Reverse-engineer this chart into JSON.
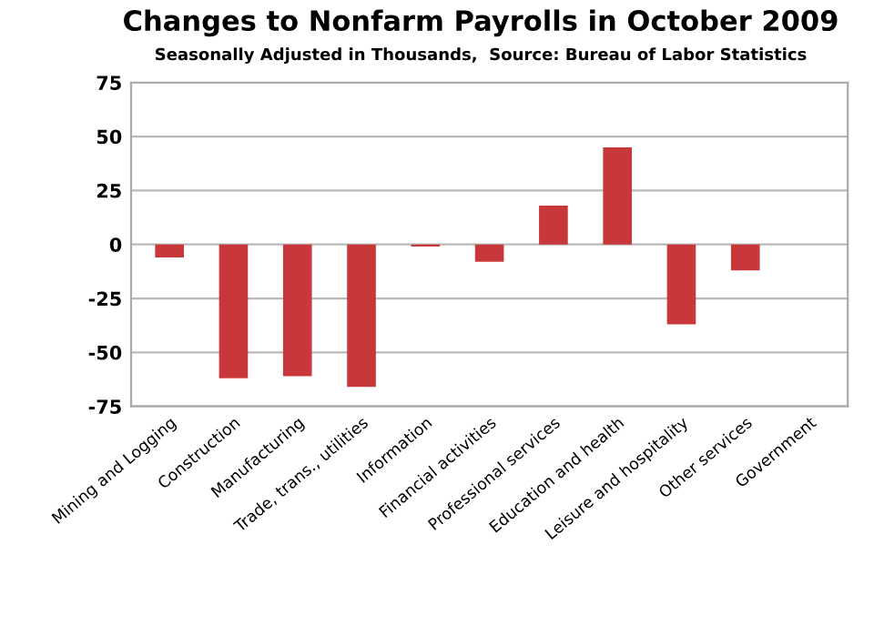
{
  "chart_data": {
    "type": "bar",
    "title": "Changes to Nonfarm Payrolls in October 2009",
    "subtitle": "Seasonally Adjusted in Thousands,  Source: Bureau of Labor Statistics",
    "categories": [
      "Mining and Logging",
      "Construction",
      "Manufacturing",
      "Trade, trans., utilities",
      "Information",
      "Financial activities",
      "Professional services",
      "Education and health",
      "Leisure and hospitality",
      "Other services",
      "Government"
    ],
    "values": [
      -6,
      -62,
      -61,
      -66,
      -1,
      -8,
      18,
      45,
      -37,
      -12,
      0
    ],
    "color": "#c8383a",
    "ylim": [
      -75,
      75
    ],
    "yticks": [
      -75,
      -50,
      -25,
      0,
      25,
      50,
      75
    ],
    "grid": "y",
    "legend": false
  }
}
